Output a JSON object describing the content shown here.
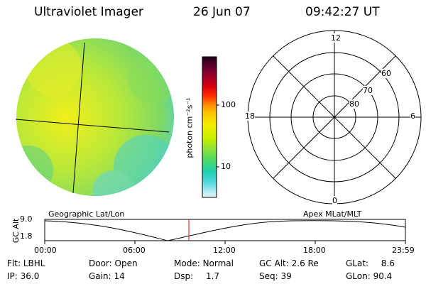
{
  "header": {
    "instrument": "Ultraviolet Imager",
    "date": "26 Jun 07",
    "time": "09:42:27 UT"
  },
  "colorbar": {
    "unit_label": "photon cm⁻²s⁻¹",
    "ticks": [
      "100",
      "10"
    ],
    "scale": "log",
    "colors": [
      "#200018",
      "#600030",
      "#a0002a",
      "#d8000a",
      "#ff3000",
      "#ff8800",
      "#ffc400",
      "#f4ea00",
      "#c8f000",
      "#80e040",
      "#40d870",
      "#20cfb0",
      "#50d8e0",
      "#a8e8f0",
      "#e8f4f8"
    ]
  },
  "polar_grid": {
    "mlt_labels": {
      "top": "12",
      "bottom": "0",
      "left": "18",
      "right": "6"
    },
    "mlat_labels": [
      "60",
      "70",
      "80"
    ]
  },
  "altitude_plot": {
    "ylabel": "GC Alt",
    "yticks": [
      "9.0",
      "1.8"
    ],
    "left_caption": "Geographic Lat/Lon",
    "right_caption": "Apex MLat/MLT",
    "xticks": [
      "00:00",
      "06:00",
      "12:00",
      "18:00",
      "23:59"
    ],
    "marker_color": "#ff0000"
  },
  "status": {
    "row1": [
      {
        "label": "Flt:",
        "value": "LBHL"
      },
      {
        "label": "Door:",
        "value": "Open"
      },
      {
        "label": "Mode:",
        "value": "Normal"
      },
      {
        "label": "GC Alt:",
        "value": "2.6 Re"
      },
      {
        "label": "GLat:",
        "value": "8.6"
      }
    ],
    "row2": [
      {
        "label": "IP:",
        "value": "36.0"
      },
      {
        "label": "Gain:",
        "value": "14"
      },
      {
        "label": "Dsp:",
        "value": "1.7"
      },
      {
        "label": "Seq:",
        "value": "39"
      },
      {
        "label": "GLon:",
        "value": "90.4"
      }
    ]
  }
}
